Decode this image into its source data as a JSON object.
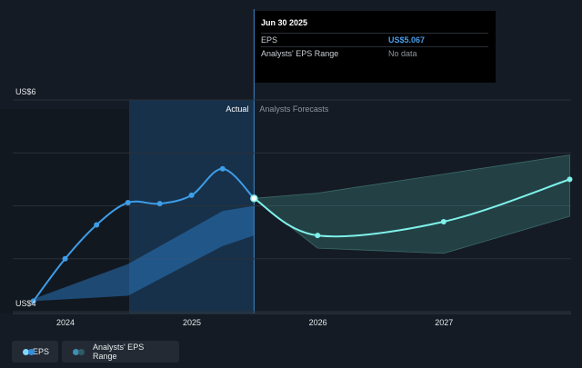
{
  "chart_data": {
    "type": "line",
    "y_axis": {
      "min_label": "US$4",
      "max_label": "US$6",
      "ylim": [
        4,
        6
      ]
    },
    "x_ticks": [
      "2024",
      "2025",
      "2026",
      "2027"
    ],
    "sections": {
      "actual": "Actual",
      "forecast": "Analysts Forecasts"
    },
    "series": [
      {
        "name": "EPS",
        "color": "#3d9de8",
        "points": [
          {
            "x": "2023-09-30",
            "y": 4.1
          },
          {
            "x": "2023-12-31",
            "y": 4.5
          },
          {
            "x": "2024-03-31",
            "y": 4.82
          },
          {
            "x": "2024-06-30",
            "y": 5.03
          },
          {
            "x": "2024-09-30",
            "y": 5.02
          },
          {
            "x": "2024-12-31",
            "y": 5.1
          },
          {
            "x": "2025-03-31",
            "y": 5.35
          },
          {
            "x": "2025-06-30",
            "y": 5.07
          }
        ]
      },
      {
        "name": "EPS forecast",
        "color": "#7ff1ea",
        "points": [
          {
            "x": "2025-06-30",
            "y": 5.07
          },
          {
            "x": "2025-12-31",
            "y": 4.72
          },
          {
            "x": "2026-12-31",
            "y": 4.85
          },
          {
            "x": "2027-12-31",
            "y": 5.25
          }
        ]
      }
    ],
    "ranges": [
      {
        "name": "Analysts' EPS Range",
        "color": "#2f86d6",
        "points": [
          {
            "x": "2023-09-30",
            "low": 4.1,
            "high": 4.12
          },
          {
            "x": "2024-06-30",
            "low": 4.15,
            "high": 4.45
          },
          {
            "x": "2025-03-31",
            "low": 4.62,
            "high": 4.95
          },
          {
            "x": "2025-06-30",
            "low": 4.72,
            "high": 5.0
          }
        ]
      },
      {
        "name": "Analysts' EPS Range",
        "color": "#3a7b78",
        "points": [
          {
            "x": "2025-06-30",
            "low": 5.07,
            "high": 5.07
          },
          {
            "x": "2025-12-31",
            "low": 4.6,
            "high": 5.12
          },
          {
            "x": "2026-12-31",
            "low": 4.55,
            "high": 5.3
          },
          {
            "x": "2027-12-31",
            "low": 4.9,
            "high": 5.48
          }
        ]
      }
    ]
  },
  "tooltip": {
    "date": "Jun 30 2025",
    "rows": [
      {
        "label": "EPS",
        "value": "US$5.067"
      },
      {
        "label": "Analysts' EPS Range",
        "value": "No data"
      }
    ]
  },
  "legend": {
    "items": [
      {
        "label": "EPS"
      },
      {
        "label": "Analysts' EPS Range"
      }
    ]
  }
}
